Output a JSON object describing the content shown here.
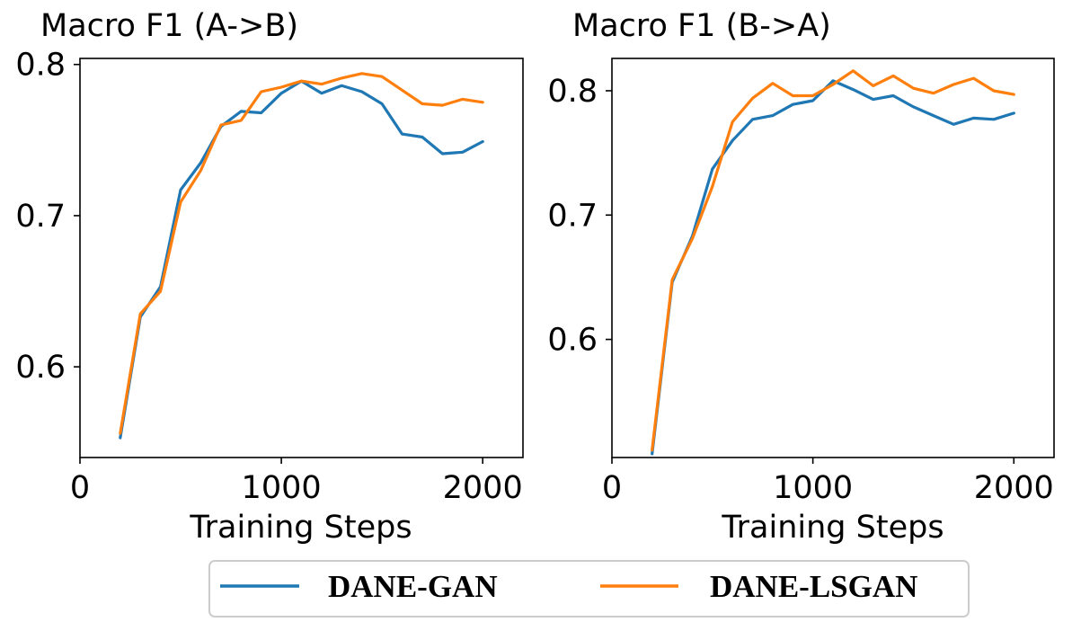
{
  "legend": {
    "entries": [
      {
        "label": "DANE-GAN",
        "color": "#1f77b4"
      },
      {
        "label": "DANE-LSGAN",
        "color": "#ff7f0e"
      }
    ]
  },
  "chart_data": [
    {
      "type": "line",
      "title": "Macro F1 (A->B)",
      "xlabel": "Training Steps",
      "ylabel": "",
      "xlim": [
        0,
        2200
      ],
      "ylim": [
        0.54,
        0.804
      ],
      "xticks": [
        0,
        1000,
        2000
      ],
      "xtick_labels": [
        "0",
        "1000",
        "2000"
      ],
      "yticks": [
        0.6,
        0.7,
        0.8
      ],
      "ytick_labels": [
        "0.6",
        "0.7",
        "0.8"
      ],
      "grid": false,
      "x": [
        200,
        300,
        400,
        500,
        600,
        700,
        800,
        900,
        1000,
        1100,
        1200,
        1300,
        1400,
        1500,
        1600,
        1700,
        1800,
        1900,
        2000
      ],
      "series": [
        {
          "name": "DANE-GAN",
          "color": "#1f77b4",
          "values": [
            0.553,
            0.633,
            0.653,
            0.717,
            0.735,
            0.759,
            0.769,
            0.768,
            0.781,
            0.789,
            0.781,
            0.786,
            0.782,
            0.774,
            0.754,
            0.752,
            0.741,
            0.742,
            0.749
          ]
        },
        {
          "name": "DANE-LSGAN",
          "color": "#ff7f0e",
          "values": [
            0.556,
            0.635,
            0.65,
            0.709,
            0.73,
            0.76,
            0.763,
            0.782,
            0.785,
            0.789,
            0.787,
            0.791,
            0.794,
            0.792,
            0.783,
            0.774,
            0.773,
            0.777,
            0.775
          ]
        }
      ]
    },
    {
      "type": "line",
      "title": "Macro F1 (B->A)",
      "xlabel": "Training Steps",
      "ylabel": "",
      "xlim": [
        0,
        2200
      ],
      "ylim": [
        0.505,
        0.826
      ],
      "xticks": [
        0,
        1000,
        2000
      ],
      "xtick_labels": [
        "0",
        "1000",
        "2000"
      ],
      "yticks": [
        0.6,
        0.7,
        0.8
      ],
      "ytick_labels": [
        "0.6",
        "0.7",
        "0.8"
      ],
      "grid": false,
      "x": [
        200,
        300,
        400,
        500,
        600,
        700,
        800,
        900,
        1000,
        1100,
        1200,
        1300,
        1400,
        1500,
        1600,
        1700,
        1800,
        1900,
        2000
      ],
      "series": [
        {
          "name": "DANE-GAN",
          "color": "#1f77b4",
          "values": [
            0.508,
            0.646,
            0.683,
            0.737,
            0.76,
            0.777,
            0.78,
            0.789,
            0.792,
            0.808,
            0.801,
            0.793,
            0.796,
            0.787,
            0.78,
            0.773,
            0.778,
            0.777,
            0.782
          ]
        },
        {
          "name": "DANE-LSGAN",
          "color": "#ff7f0e",
          "values": [
            0.511,
            0.648,
            0.681,
            0.723,
            0.775,
            0.794,
            0.806,
            0.796,
            0.796,
            0.805,
            0.816,
            0.804,
            0.812,
            0.802,
            0.798,
            0.805,
            0.81,
            0.8,
            0.797
          ]
        }
      ]
    }
  ]
}
